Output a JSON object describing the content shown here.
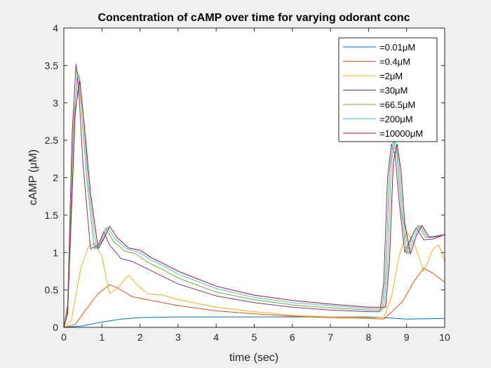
{
  "chart_data": {
    "type": "line",
    "title": "Concentration of cAMP over time for varying odorant conc",
    "xlabel": "time (sec)",
    "ylabel": "cAMP (μM)",
    "xlim": [
      0,
      10
    ],
    "ylim": [
      0,
      4
    ],
    "xticks": [
      "0",
      "1",
      "2",
      "3",
      "4",
      "5",
      "6",
      "7",
      "8",
      "9",
      "10"
    ],
    "yticks": [
      "0",
      "0.5",
      "1",
      "1.5",
      "2",
      "2.5",
      "3",
      "3.5",
      "4"
    ],
    "grid": false,
    "legend_position": "top-right",
    "series": [
      {
        "name": "=0.01μM",
        "color": "#0072BD",
        "points": [
          [
            0,
            0
          ],
          [
            0.5,
            0.02
          ],
          [
            1,
            0.07
          ],
          [
            1.5,
            0.11
          ],
          [
            2,
            0.13
          ],
          [
            3,
            0.14
          ],
          [
            4,
            0.14
          ],
          [
            5,
            0.14
          ],
          [
            6,
            0.14
          ],
          [
            7,
            0.14
          ],
          [
            8,
            0.14
          ],
          [
            8.4,
            0.13
          ],
          [
            9,
            0.11
          ],
          [
            10,
            0.12
          ]
        ]
      },
      {
        "name": "=0.4μM",
        "color": "#D95319",
        "points": [
          [
            0,
            0
          ],
          [
            0.3,
            0.04
          ],
          [
            0.6,
            0.25
          ],
          [
            0.9,
            0.45
          ],
          [
            1.2,
            0.57
          ],
          [
            1.4,
            0.53
          ],
          [
            1.8,
            0.41
          ],
          [
            2.5,
            0.34
          ],
          [
            3,
            0.29
          ],
          [
            4,
            0.22
          ],
          [
            5,
            0.18
          ],
          [
            6,
            0.15
          ],
          [
            7,
            0.13
          ],
          [
            8,
            0.12
          ],
          [
            8.4,
            0.11
          ],
          [
            8.6,
            0.2
          ],
          [
            8.9,
            0.35
          ],
          [
            9.2,
            0.62
          ],
          [
            9.45,
            0.79
          ],
          [
            9.7,
            0.72
          ],
          [
            10,
            0.6
          ]
        ]
      },
      {
        "name": "=2μM",
        "color": "#EDB120",
        "points": [
          [
            0,
            0
          ],
          [
            0.2,
            0.1
          ],
          [
            0.45,
            0.8
          ],
          [
            0.65,
            1.08
          ],
          [
            0.8,
            1.12
          ],
          [
            1,
            0.95
          ],
          [
            1.2,
            0.45
          ],
          [
            1.4,
            0.52
          ],
          [
            1.7,
            0.7
          ],
          [
            1.9,
            0.58
          ],
          [
            2.2,
            0.45
          ],
          [
            2.6,
            0.43
          ],
          [
            3,
            0.37
          ],
          [
            4,
            0.27
          ],
          [
            5,
            0.21
          ],
          [
            6,
            0.16
          ],
          [
            7,
            0.14
          ],
          [
            8,
            0.13
          ],
          [
            8.4,
            0.13
          ],
          [
            8.6,
            0.4
          ],
          [
            8.8,
            0.95
          ],
          [
            9.0,
            1.28
          ],
          [
            9.2,
            1.12
          ],
          [
            9.45,
            0.75
          ],
          [
            9.7,
            1.05
          ],
          [
            9.85,
            1.1
          ],
          [
            10,
            0.88
          ]
        ]
      },
      {
        "name": "=30μM",
        "color": "#7E2F8E",
        "points": [
          [
            0,
            0
          ],
          [
            0.1,
            0.3
          ],
          [
            0.22,
            2.6
          ],
          [
            0.32,
            3.52
          ],
          [
            0.4,
            3.1
          ],
          [
            0.5,
            2.2
          ],
          [
            0.7,
            1.05
          ],
          [
            0.9,
            1.1
          ],
          [
            1.05,
            1.28
          ],
          [
            1.2,
            1.1
          ],
          [
            1.5,
            0.92
          ],
          [
            1.8,
            0.88
          ],
          [
            2.2,
            0.78
          ],
          [
            2.6,
            0.68
          ],
          [
            3,
            0.58
          ],
          [
            4,
            0.42
          ],
          [
            5,
            0.33
          ],
          [
            6,
            0.27
          ],
          [
            7,
            0.23
          ],
          [
            8,
            0.21
          ],
          [
            8.3,
            0.21
          ],
          [
            8.4,
            0.6
          ],
          [
            8.5,
            2.0
          ],
          [
            8.6,
            2.45
          ],
          [
            8.7,
            2.3
          ],
          [
            8.8,
            1.7
          ],
          [
            8.95,
            1.0
          ],
          [
            9.1,
            1.18
          ],
          [
            9.25,
            1.33
          ],
          [
            9.45,
            1.17
          ],
          [
            9.7,
            1.18
          ],
          [
            10,
            1.24
          ]
        ]
      },
      {
        "name": "=66.5μM",
        "color": "#77AC30",
        "points": [
          [
            0,
            0
          ],
          [
            0.1,
            0.25
          ],
          [
            0.25,
            2.7
          ],
          [
            0.36,
            3.42
          ],
          [
            0.45,
            3.0
          ],
          [
            0.6,
            2.0
          ],
          [
            0.8,
            1.05
          ],
          [
            0.95,
            1.12
          ],
          [
            1.1,
            1.33
          ],
          [
            1.3,
            1.15
          ],
          [
            1.6,
            1.02
          ],
          [
            1.9,
            0.98
          ],
          [
            2.2,
            0.87
          ],
          [
            2.6,
            0.77
          ],
          [
            3,
            0.66
          ],
          [
            4,
            0.47
          ],
          [
            5,
            0.37
          ],
          [
            6,
            0.3
          ],
          [
            7,
            0.26
          ],
          [
            8,
            0.23
          ],
          [
            8.35,
            0.23
          ],
          [
            8.45,
            0.7
          ],
          [
            8.55,
            2.1
          ],
          [
            8.65,
            2.5
          ],
          [
            8.75,
            2.3
          ],
          [
            8.85,
            1.6
          ],
          [
            9.0,
            0.98
          ],
          [
            9.15,
            1.22
          ],
          [
            9.3,
            1.36
          ],
          [
            9.5,
            1.2
          ],
          [
            9.75,
            1.22
          ],
          [
            10,
            1.24
          ]
        ]
      },
      {
        "name": "=200μM",
        "color": "#4DBEEE",
        "points": [
          [
            0,
            0
          ],
          [
            0.1,
            0.2
          ],
          [
            0.28,
            2.7
          ],
          [
            0.4,
            3.38
          ],
          [
            0.5,
            2.9
          ],
          [
            0.65,
            1.9
          ],
          [
            0.85,
            1.05
          ],
          [
            1.0,
            1.15
          ],
          [
            1.15,
            1.34
          ],
          [
            1.35,
            1.18
          ],
          [
            1.65,
            1.05
          ],
          [
            1.95,
            1.01
          ],
          [
            2.3,
            0.9
          ],
          [
            2.7,
            0.8
          ],
          [
            3,
            0.71
          ],
          [
            4,
            0.52
          ],
          [
            5,
            0.4
          ],
          [
            6,
            0.33
          ],
          [
            7,
            0.29
          ],
          [
            8,
            0.25
          ],
          [
            8.4,
            0.25
          ],
          [
            8.5,
            0.8
          ],
          [
            8.6,
            2.2
          ],
          [
            8.7,
            2.5
          ],
          [
            8.8,
            2.2
          ],
          [
            8.9,
            1.5
          ],
          [
            9.05,
            0.98
          ],
          [
            9.2,
            1.22
          ],
          [
            9.35,
            1.36
          ],
          [
            9.55,
            1.2
          ],
          [
            9.8,
            1.22
          ],
          [
            10,
            1.24
          ]
        ]
      },
      {
        "name": "=10000μM",
        "color": "#A2142F",
        "points": [
          [
            0,
            0
          ],
          [
            0.1,
            0.18
          ],
          [
            0.3,
            2.9
          ],
          [
            0.42,
            3.3
          ],
          [
            0.52,
            2.8
          ],
          [
            0.7,
            1.8
          ],
          [
            0.9,
            1.05
          ],
          [
            1.05,
            1.18
          ],
          [
            1.2,
            1.35
          ],
          [
            1.4,
            1.2
          ],
          [
            1.7,
            1.06
          ],
          [
            2.0,
            1.03
          ],
          [
            2.3,
            0.93
          ],
          [
            2.7,
            0.83
          ],
          [
            3,
            0.75
          ],
          [
            4,
            0.55
          ],
          [
            5,
            0.43
          ],
          [
            6,
            0.36
          ],
          [
            7,
            0.31
          ],
          [
            8,
            0.27
          ],
          [
            8.45,
            0.27
          ],
          [
            8.55,
            0.9
          ],
          [
            8.65,
            2.2
          ],
          [
            8.75,
            2.45
          ],
          [
            8.85,
            2.1
          ],
          [
            8.95,
            1.4
          ],
          [
            9.1,
            0.98
          ],
          [
            9.25,
            1.22
          ],
          [
            9.4,
            1.36
          ],
          [
            9.6,
            1.2
          ],
          [
            9.85,
            1.22
          ],
          [
            10,
            1.24
          ]
        ]
      }
    ]
  }
}
